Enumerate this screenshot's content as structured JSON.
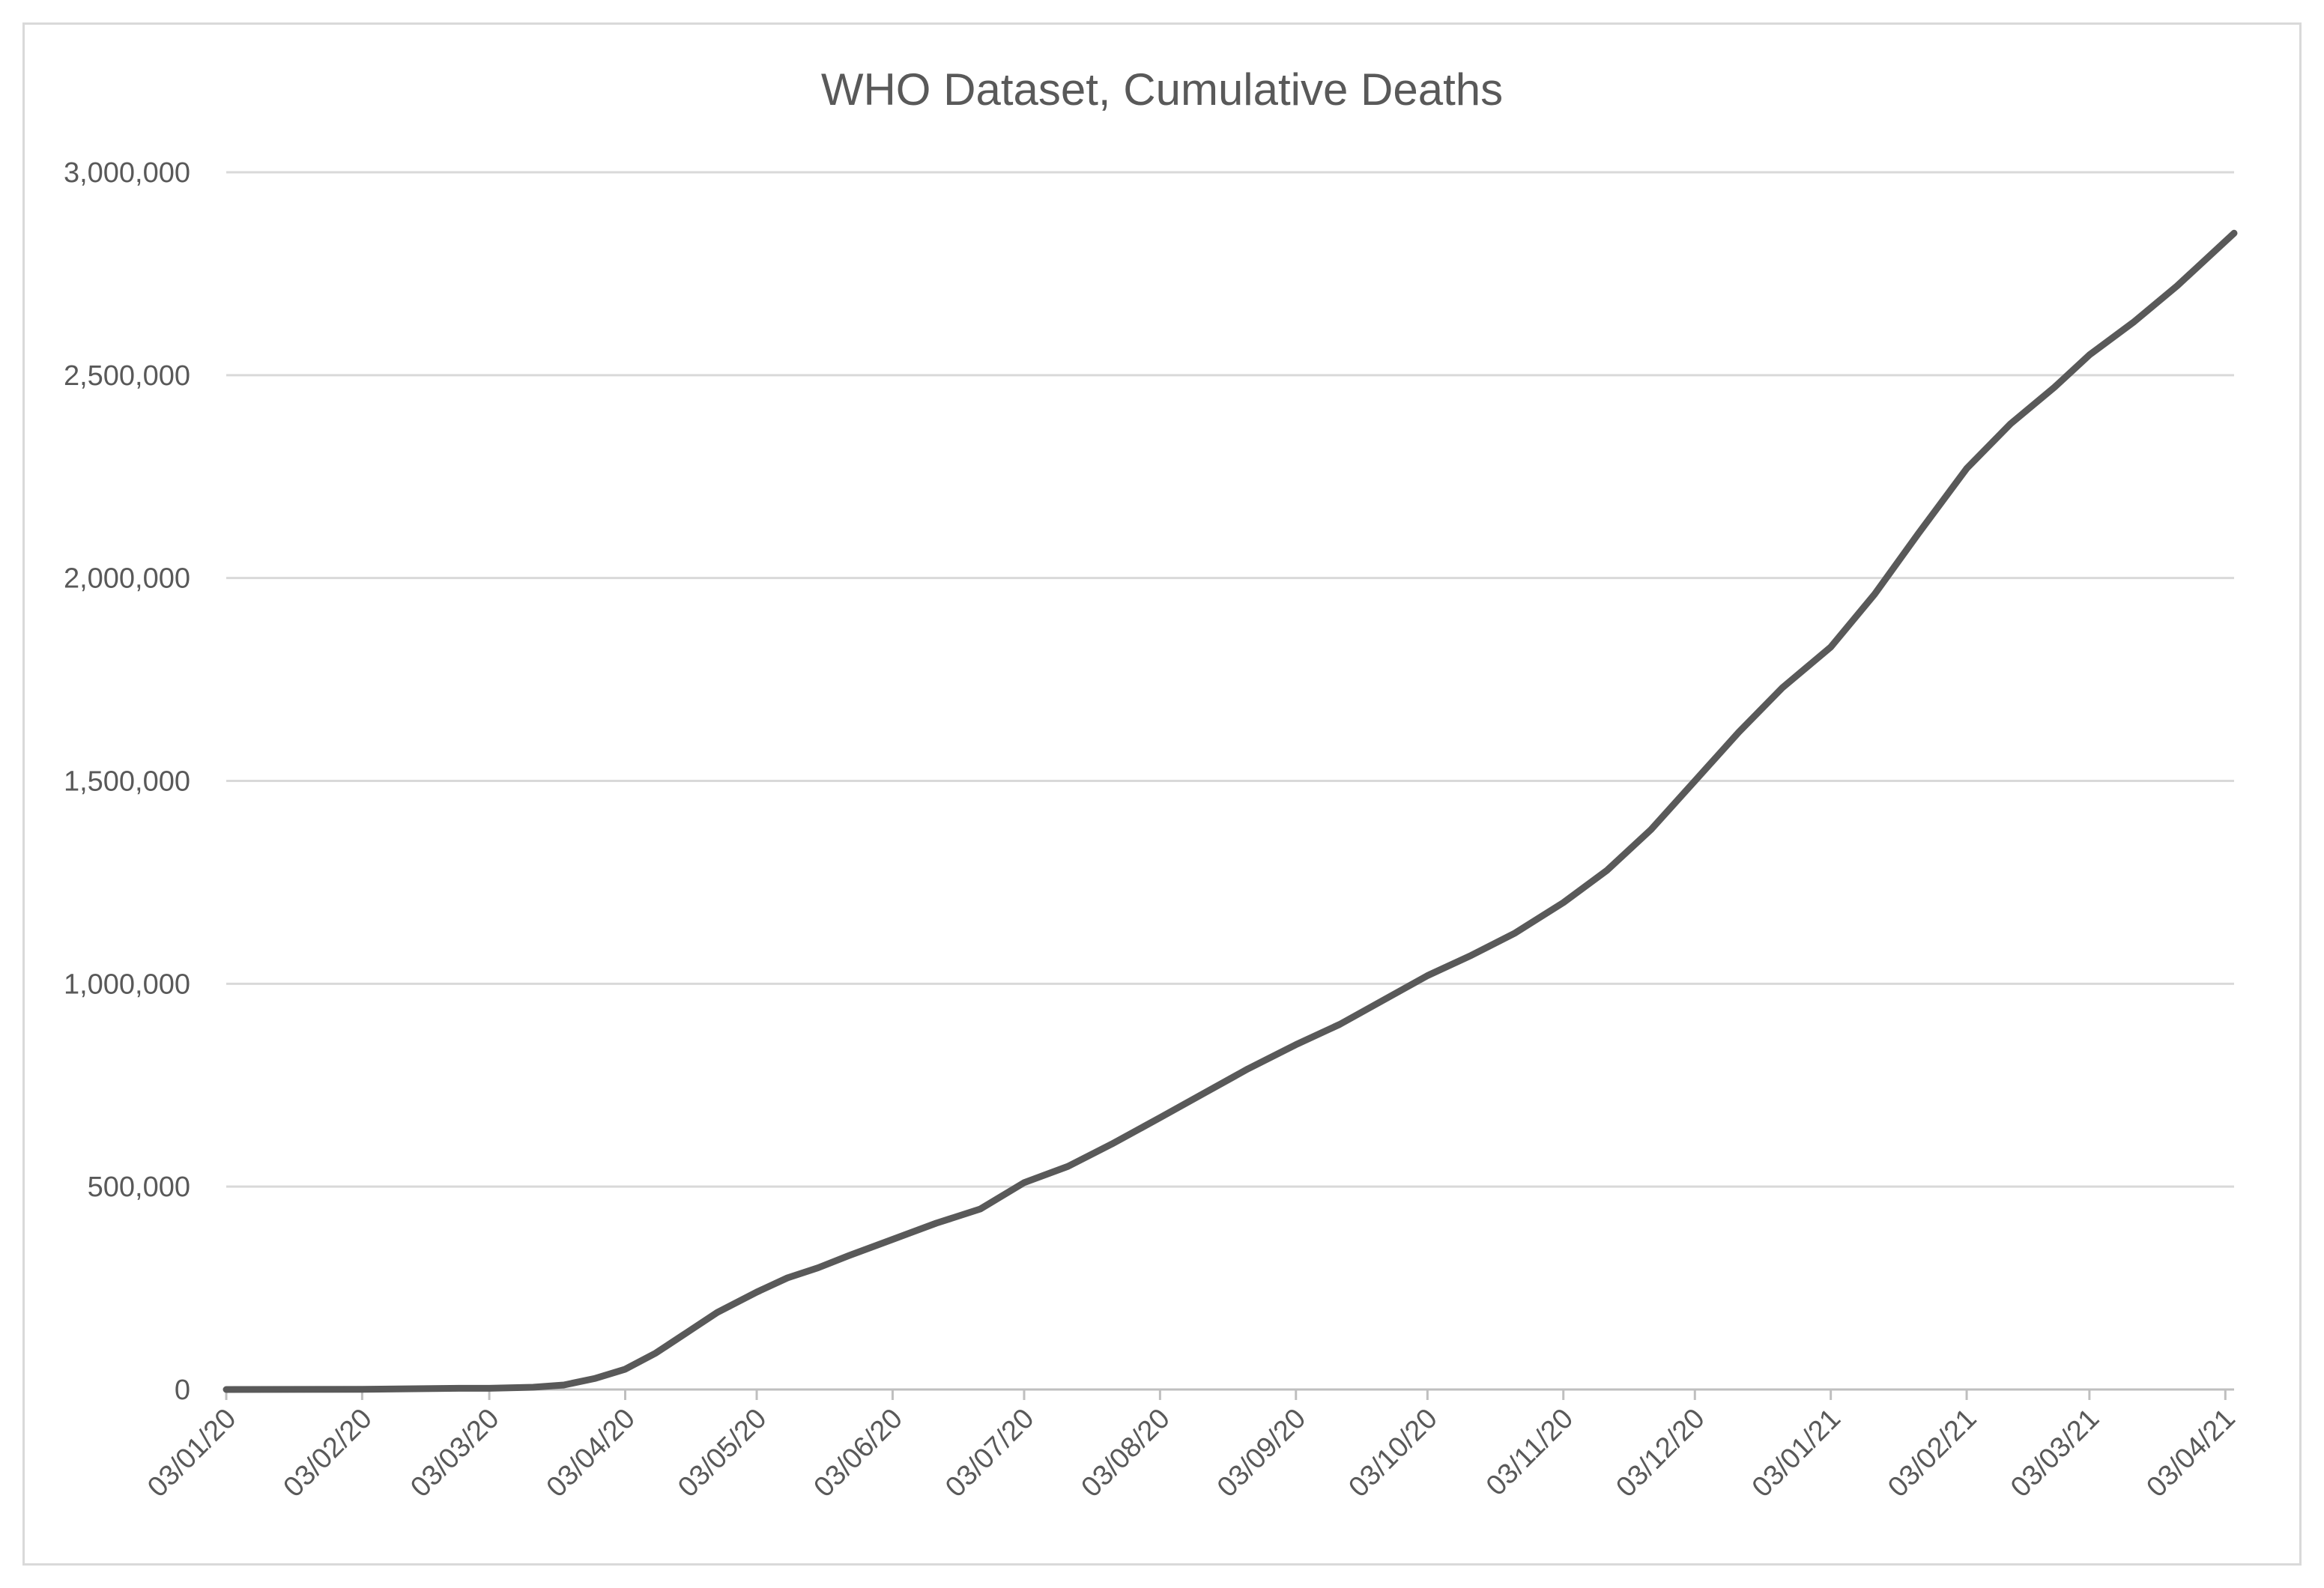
{
  "chart_data": {
    "type": "line",
    "title": "WHO Dataset, Cumulative Deaths",
    "xlabel": "",
    "ylabel": "",
    "ylim": [
      0,
      3000000
    ],
    "yticks": [
      0,
      500000,
      1000000,
      1500000,
      2000000,
      2500000,
      3000000
    ],
    "ytick_labels": [
      "0",
      "500,000",
      "1,000,000",
      "1,500,000",
      "2,000,000",
      "2,500,000",
      "3,000,000"
    ],
    "xlim": [
      "2020-01-03",
      "2021-04-05"
    ],
    "xtick_dates": [
      "2020-01-03",
      "2020-02-03",
      "2020-03-03",
      "2020-04-03",
      "2020-05-03",
      "2020-06-03",
      "2020-07-03",
      "2020-08-03",
      "2020-09-03",
      "2020-10-03",
      "2020-11-03",
      "2020-12-03",
      "2021-01-03",
      "2021-02-03",
      "2021-03-03",
      "2021-04-03"
    ],
    "xtick_labels": [
      "03/01/20",
      "03/02/20",
      "03/03/20",
      "03/04/20",
      "03/05/20",
      "03/06/20",
      "03/07/20",
      "03/08/20",
      "03/09/20",
      "03/10/20",
      "03/11/20",
      "03/12/20",
      "03/01/21",
      "03/02/21",
      "03/03/21",
      "03/04/21"
    ],
    "grid": true,
    "legend": "none",
    "series": [
      {
        "color": "#595959",
        "x": [
          "2020-01-03",
          "2020-02-03",
          "2020-02-25",
          "2020-03-03",
          "2020-03-13",
          "2020-03-20",
          "2020-03-27",
          "2020-04-03",
          "2020-04-10",
          "2020-04-17",
          "2020-04-24",
          "2020-05-03",
          "2020-05-10",
          "2020-05-17",
          "2020-05-24",
          "2020-06-03",
          "2020-06-13",
          "2020-06-23",
          "2020-07-03",
          "2020-07-13",
          "2020-07-23",
          "2020-08-03",
          "2020-08-13",
          "2020-08-23",
          "2020-09-03",
          "2020-09-13",
          "2020-09-23",
          "2020-10-03",
          "2020-10-13",
          "2020-10-23",
          "2020-11-03",
          "2020-11-13",
          "2020-11-23",
          "2020-12-03",
          "2020-12-13",
          "2020-12-23",
          "2021-01-03",
          "2021-01-13",
          "2021-01-23",
          "2021-02-03",
          "2021-02-13",
          "2021-02-23",
          "2021-03-03",
          "2021-03-13",
          "2021-03-23",
          "2021-04-05"
        ],
        "y": [
          0,
          300,
          2900,
          3000,
          5500,
          11000,
          27000,
          50000,
          90000,
          140000,
          190000,
          240000,
          275000,
          300000,
          330000,
          370000,
          410000,
          445000,
          510000,
          550000,
          605000,
          670000,
          730000,
          790000,
          850000,
          900000,
          960000,
          1020000,
          1070000,
          1125000,
          1200000,
          1280000,
          1380000,
          1500000,
          1620000,
          1730000,
          1830000,
          1960000,
          2110000,
          2270000,
          2380000,
          2470000,
          2550000,
          2630000,
          2720000,
          2850000
        ]
      }
    ]
  }
}
